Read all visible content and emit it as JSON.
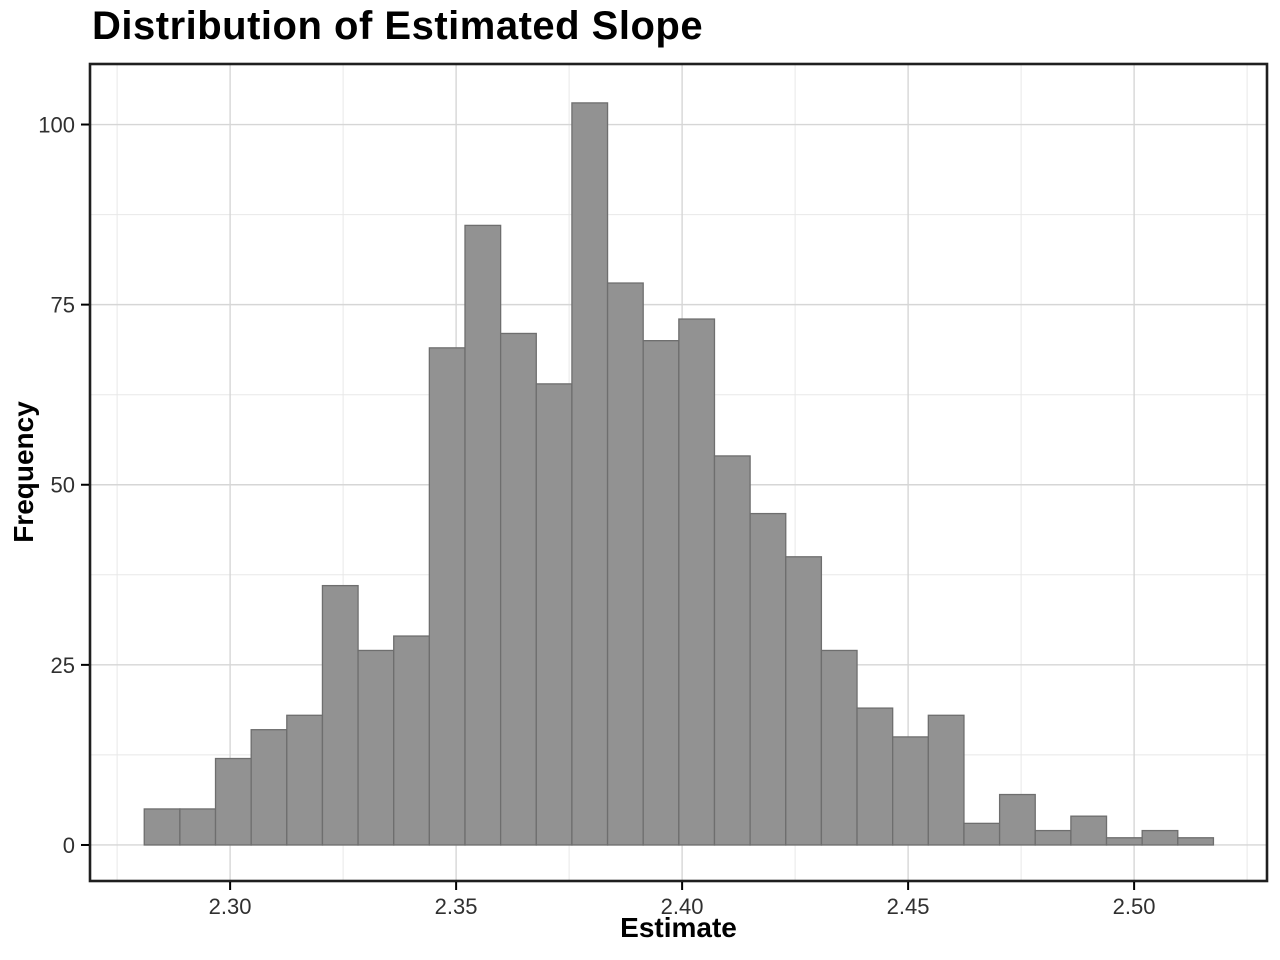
{
  "chart_data": {
    "type": "bar",
    "subtype": "histogram",
    "title": "Distribution of Estimated Slope",
    "xlabel": "Estimate",
    "ylabel": "Frequency",
    "bin_start": 2.281,
    "bin_width": 0.007885,
    "counts": [
      5,
      5,
      12,
      16,
      18,
      36,
      27,
      29,
      69,
      86,
      71,
      64,
      103,
      78,
      70,
      73,
      54,
      46,
      40,
      27,
      19,
      15,
      18,
      3,
      7,
      2,
      4,
      1,
      2,
      1
    ],
    "x_ticks": [
      2.3,
      2.35,
      2.4,
      2.45,
      2.5
    ],
    "x_tick_labels": [
      "2.30",
      "2.35",
      "2.40",
      "2.45",
      "2.50"
    ],
    "y_ticks": [
      0,
      25,
      50,
      75,
      100
    ],
    "y_tick_labels": [
      "0",
      "25",
      "50",
      "75",
      "100"
    ],
    "x_minor_gridlines": [
      2.275,
      2.325,
      2.375,
      2.425,
      2.475,
      2.525
    ],
    "y_minor_gridlines": [
      12.5,
      37.5,
      62.5,
      87.5
    ],
    "x_range": [
      2.269,
      2.5294
    ],
    "y_range": [
      -5.0,
      108.4
    ],
    "grid": true,
    "legend": false,
    "colors": {
      "bar_fill": "#929292",
      "bar_stroke": "#6e6e6e",
      "grid_major": "#d6d6d6",
      "grid_minor": "#e8e8e8",
      "panel_border": "#1f1f1f",
      "tick_mark": "#000000",
      "tick_label": "#303030",
      "title": "#000000",
      "background": "#ffffff"
    }
  }
}
